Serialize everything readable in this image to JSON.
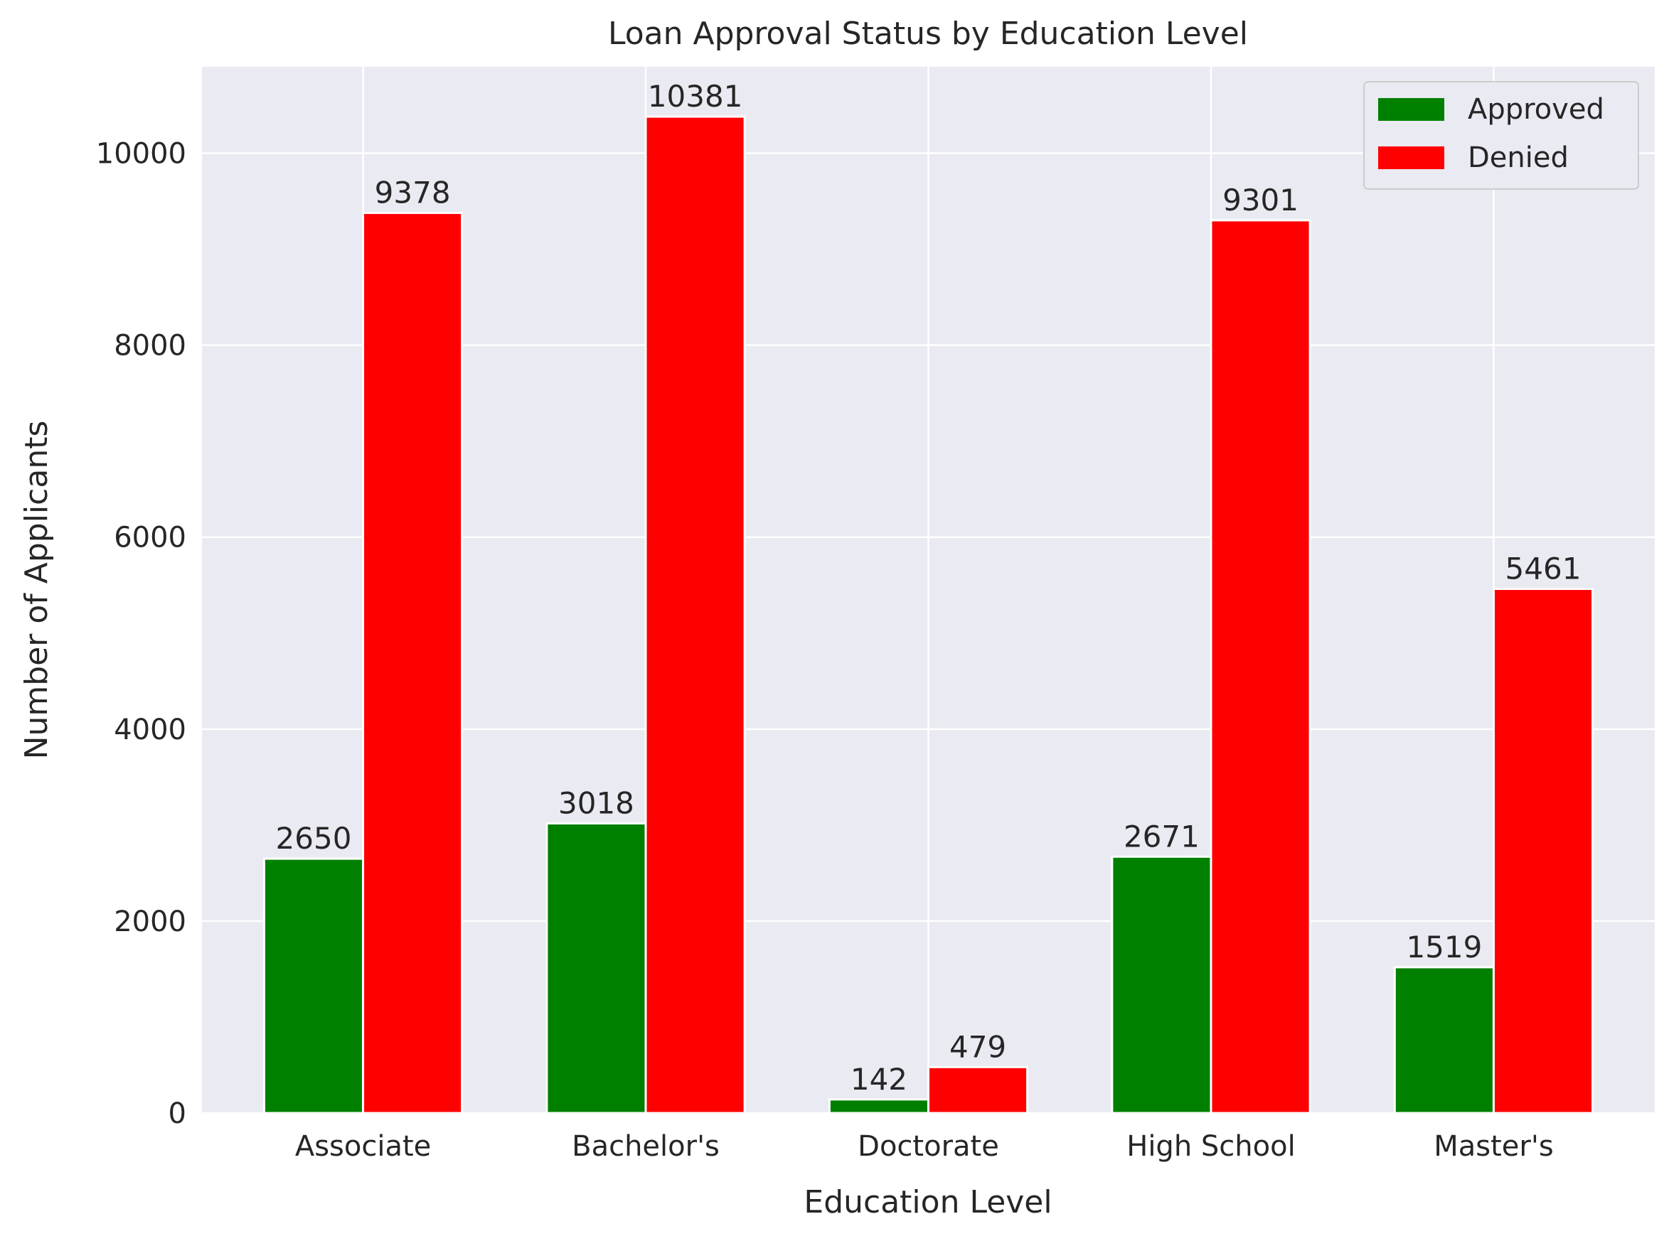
{
  "chart_data": {
    "type": "bar",
    "title": "Loan Approval Status by Education Level",
    "xlabel": "Education Level",
    "ylabel": "Number of Applicants",
    "categories": [
      "Associate",
      "Bachelor's",
      "Doctorate",
      "High School",
      "Master's"
    ],
    "series": [
      {
        "name": "Approved",
        "color": "#008000",
        "values": [
          2650,
          3018,
          142,
          2671,
          1519
        ]
      },
      {
        "name": "Denied",
        "color": "#ff0000",
        "values": [
          9378,
          10381,
          479,
          9301,
          5461
        ]
      }
    ],
    "ylim": [
      0,
      10900
    ],
    "yticks": [
      "0",
      "2000",
      "4000",
      "6000",
      "8000",
      "10000"
    ],
    "grid": true,
    "legend_position": "top-right",
    "background_color": "#eaeaf2",
    "grid_color": "#ffffff"
  }
}
